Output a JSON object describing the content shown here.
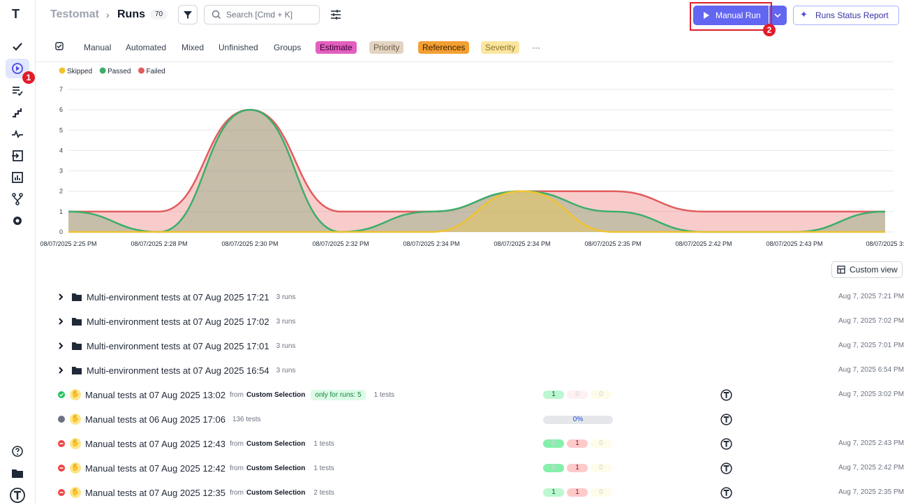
{
  "header": {
    "brand": "Testomat",
    "title": "Runs",
    "count": "70",
    "search": "Search [Cmd + K]",
    "manual_run": "Manual Run",
    "status_report": "Runs Status Report",
    "custom_view": "Custom view"
  },
  "annotations": [
    "1",
    "2"
  ],
  "tabs": [
    "Manual",
    "Automated",
    "Mixed",
    "Unfinished",
    "Groups",
    "Estimate",
    "Priority",
    "References",
    "Severity",
    "···"
  ],
  "chart": {
    "type": "line",
    "categories": [
      "08/07/2025 2:25 PM",
      "08/07/2025 2:28 PM",
      "08/07/2025 2:30 PM",
      "08/07/2025 2:32 PM",
      "08/07/2025 2:34 PM",
      "08/07/2025 2:34 PM",
      "08/07/2025 2:35 PM",
      "08/07/2025 2:42 PM",
      "08/07/2025 2:43 PM",
      "08/07/2025 3:"
    ],
    "ylim": [
      0,
      7
    ],
    "yticks": [
      0,
      1,
      2,
      3,
      4,
      5,
      6,
      7
    ],
    "series": [
      {
        "name": "Skipped",
        "color": "#f0c330",
        "values": [
          0,
          0,
          0,
          0,
          0,
          2,
          0,
          0,
          0,
          0
        ]
      },
      {
        "name": "Passed",
        "color": "#3cae6b",
        "values": [
          1,
          0,
          6,
          0,
          1,
          2,
          1,
          0,
          0,
          1
        ]
      },
      {
        "name": "Failed",
        "color": "#e05d5d",
        "values": [
          1,
          1,
          6,
          1,
          1,
          2,
          2,
          1,
          1,
          1
        ]
      }
    ]
  },
  "rows": [
    {
      "kind": "group",
      "name": "Multi-environment tests at 07 Aug 2025 17:21",
      "meta": "3 runs",
      "date": "Aug 7, 2025 7:21 PM"
    },
    {
      "kind": "group",
      "name": "Multi-environment tests at 07 Aug 2025 17:02",
      "meta": "3 runs",
      "date": "Aug 7, 2025 7:02 PM"
    },
    {
      "kind": "group",
      "name": "Multi-environment tests at 07 Aug 2025 17:01",
      "meta": "3 runs",
      "date": "Aug 7, 2025 7:01 PM"
    },
    {
      "kind": "group",
      "name": "Multi-environment tests at 07 Aug 2025 16:54",
      "meta": "3 runs",
      "date": "Aug 7, 2025 6:54 PM"
    },
    {
      "kind": "passed",
      "name": "Manual tests at 07 Aug 2025 13:02",
      "from": "from",
      "source": "Custom Selection",
      "tag": "only for runs: 5",
      "meta": "1 tests",
      "counts": [
        1,
        0,
        0
      ],
      "date": "Aug 7, 2025 3:02 PM"
    },
    {
      "kind": "pending",
      "name": "Manual tests at 06 Aug 2025 17:06",
      "meta": "136 tests",
      "progress": "0%"
    },
    {
      "kind": "failed",
      "name": "Manual tests at 07 Aug 2025 12:43",
      "from": "from",
      "source": "Custom Selection",
      "meta": "1 tests",
      "counts": [
        0,
        1,
        0
      ],
      "date": "Aug 7, 2025 2:43 PM"
    },
    {
      "kind": "failed",
      "name": "Manual tests at 07 Aug 2025 12:42",
      "from": "from",
      "source": "Custom Selection",
      "meta": "1 tests",
      "counts": [
        0,
        1,
        0
      ],
      "date": "Aug 7, 2025 2:42 PM"
    },
    {
      "kind": "failed",
      "name": "Manual tests at 07 Aug 2025 12:35",
      "from": "from",
      "source": "Custom Selection",
      "meta": "2 tests",
      "counts": [
        1,
        1,
        0
      ],
      "date": "Aug 7, 2025 2:35 PM"
    }
  ]
}
